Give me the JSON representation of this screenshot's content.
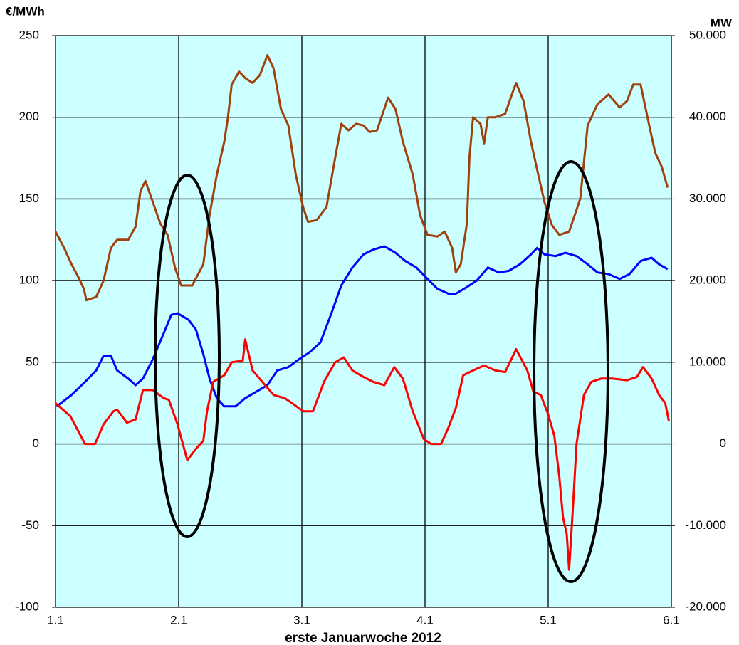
{
  "chart_data": {
    "type": "line",
    "ylabel": "€/MWh",
    "y2label": "MW",
    "xlabel": "erste Januarwoche 2012",
    "xlim": [
      1,
      6
    ],
    "xticks": [
      {
        "value": 1,
        "label": "1.1"
      },
      {
        "value": 2,
        "label": "2.1"
      },
      {
        "value": 3,
        "label": "3.1"
      },
      {
        "value": 4,
        "label": "4.1"
      },
      {
        "value": 5,
        "label": "5.1"
      },
      {
        "value": 6,
        "label": "6.1"
      }
    ],
    "ylim": [
      -100,
      250
    ],
    "yticks": [
      -100,
      -50,
      0,
      50,
      100,
      150,
      200,
      250
    ],
    "y2lim": [
      -20000,
      50000
    ],
    "y2ticks": [
      {
        "value": -20000,
        "label": "-20.000"
      },
      {
        "value": -10000,
        "label": "-10.000"
      },
      0,
      {
        "value": 10000,
        "label": "10.000"
      },
      {
        "value": 20000,
        "label": "20.000"
      },
      {
        "value": 30000,
        "label": "30.000"
      },
      {
        "value": 40000,
        "label": "40.000"
      },
      {
        "value": 50000,
        "label": "50.000"
      }
    ],
    "grid": true,
    "background": "#ccffff",
    "series": [
      {
        "color": "#a0410d",
        "axis": "y2",
        "x": [
          1.0,
          1.07,
          1.13,
          1.18,
          1.23,
          1.25,
          1.33,
          1.39,
          1.45,
          1.5,
          1.59,
          1.65,
          1.69,
          1.73,
          1.79,
          1.85,
          1.91,
          1.97,
          2.02,
          2.11,
          2.2,
          2.25,
          2.31,
          2.37,
          2.4,
          2.43,
          2.49,
          2.54,
          2.6,
          2.66,
          2.72,
          2.77,
          2.83,
          2.89,
          2.95,
          3.01,
          3.05,
          3.12,
          3.2,
          3.27,
          3.32,
          3.38,
          3.44,
          3.5,
          3.55,
          3.61,
          3.7,
          3.76,
          3.82,
          3.9,
          3.96,
          4.02,
          4.1,
          4.16,
          4.22,
          4.25,
          4.29,
          4.34,
          4.36,
          4.39,
          4.45,
          4.48,
          4.51,
          4.57,
          4.65,
          4.71,
          4.74,
          4.8,
          4.86,
          4.91,
          4.97,
          5.03,
          5.09,
          5.17,
          5.26,
          5.32,
          5.4,
          5.49,
          5.58,
          5.64,
          5.69,
          5.75,
          5.82,
          5.87,
          5.92,
          5.97
        ],
        "values": [
          26000,
          24000,
          22000,
          20600,
          19000,
          17600,
          18000,
          20000,
          24000,
          25000,
          25000,
          26600,
          31000,
          32200,
          29600,
          27000,
          25600,
          21600,
          19400,
          19400,
          22000,
          28000,
          33000,
          37000,
          40000,
          44000,
          45600,
          44800,
          44200,
          45200,
          47600,
          46000,
          41000,
          39000,
          33000,
          29000,
          27200,
          27400,
          29000,
          35000,
          39200,
          38400,
          39200,
          39000,
          38200,
          38400,
          42400,
          41000,
          37000,
          33000,
          28000,
          25600,
          25400,
          26000,
          24000,
          21000,
          22000,
          27000,
          35000,
          40000,
          39200,
          36800,
          40000,
          40000,
          40400,
          43000,
          44200,
          42000,
          37000,
          33600,
          29600,
          26800,
          25600,
          26000,
          30000,
          39000,
          41600,
          42800,
          41200,
          42000,
          44000,
          44000,
          39000,
          35600,
          34000,
          31400
        ]
      },
      {
        "color": "#0000ff",
        "axis": "y2",
        "x": [
          1.01,
          1.13,
          1.24,
          1.33,
          1.39,
          1.45,
          1.5,
          1.59,
          1.65,
          1.71,
          1.79,
          1.88,
          1.94,
          1.99,
          2.08,
          2.14,
          2.2,
          2.25,
          2.31,
          2.37,
          2.46,
          2.54,
          2.63,
          2.72,
          2.8,
          2.89,
          2.98,
          3.06,
          3.15,
          3.24,
          3.32,
          3.41,
          3.5,
          3.58,
          3.67,
          3.76,
          3.84,
          3.93,
          4.02,
          4.1,
          4.19,
          4.25,
          4.34,
          4.42,
          4.51,
          4.6,
          4.68,
          4.77,
          4.86,
          4.91,
          4.97,
          5.06,
          5.14,
          5.23,
          5.32,
          5.4,
          5.49,
          5.58,
          5.66,
          5.75,
          5.84,
          5.9,
          5.97
        ],
        "values": [
          4600,
          6000,
          7600,
          9000,
          10800,
          10800,
          9000,
          8000,
          7200,
          8000,
          10400,
          13600,
          15800,
          16000,
          15200,
          14000,
          11000,
          8000,
          5600,
          4600,
          4600,
          5600,
          6400,
          7200,
          9000,
          9400,
          10400,
          11200,
          12400,
          16000,
          19400,
          21600,
          23200,
          23800,
          24200,
          23400,
          22400,
          21600,
          20200,
          19000,
          18400,
          18400,
          19200,
          20000,
          21600,
          21000,
          21200,
          22000,
          23200,
          24000,
          23200,
          23000,
          23400,
          23000,
          22000,
          21000,
          20800,
          20200,
          20800,
          22400,
          22800,
          22000,
          21400
        ]
      },
      {
        "color": "#ff0000",
        "axis": "y",
        "x": [
          1.0,
          1.12,
          1.24,
          1.32,
          1.39,
          1.47,
          1.5,
          1.58,
          1.65,
          1.71,
          1.79,
          1.88,
          1.92,
          1.99,
          2.07,
          2.14,
          2.2,
          2.23,
          2.28,
          2.37,
          2.43,
          2.52,
          2.54,
          2.6,
          2.69,
          2.77,
          2.86,
          2.92,
          3.01,
          3.09,
          3.18,
          3.27,
          3.34,
          3.41,
          3.5,
          3.58,
          3.67,
          3.75,
          3.82,
          3.9,
          3.99,
          4.05,
          4.13,
          4.19,
          4.25,
          4.31,
          4.39,
          4.48,
          4.57,
          4.65,
          4.74,
          4.83,
          4.88,
          4.94,
          5.0,
          5.05,
          5.09,
          5.12,
          5.15,
          5.17,
          5.2,
          5.23,
          5.29,
          5.35,
          5.43,
          5.52,
          5.64,
          5.72,
          5.77,
          5.84,
          5.9,
          5.95,
          5.98
        ],
        "values": [
          25,
          17,
          0,
          0,
          12,
          20,
          21,
          13,
          15,
          33,
          33,
          28,
          27,
          12,
          -10,
          -3,
          2,
          20,
          38,
          42,
          50,
          51,
          64,
          45,
          37,
          30,
          28,
          25,
          20,
          20,
          38,
          50,
          53,
          45,
          41,
          38,
          36,
          47,
          40,
          20,
          3,
          0,
          0,
          10,
          22,
          42,
          45,
          48,
          45,
          44,
          58,
          45,
          32,
          30,
          18,
          5,
          -20,
          -45,
          -55,
          -77,
          -40,
          0,
          30,
          38,
          40,
          40,
          39,
          41,
          47,
          40,
          30,
          25,
          14
        ]
      }
    ]
  }
}
